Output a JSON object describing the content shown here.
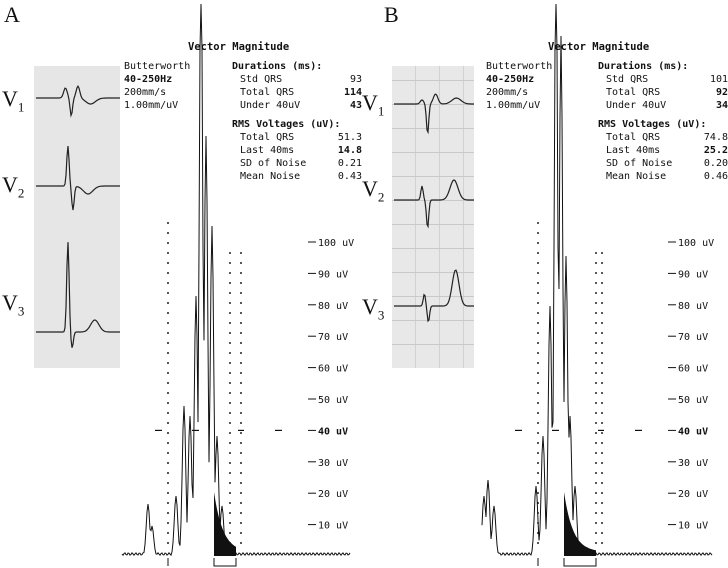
{
  "chart_data": [
    {
      "type": "line",
      "panel": "A",
      "title": "Vector Magnitude",
      "filter": {
        "name": "Butterworth",
        "band": "40-250Hz",
        "speed": "200mm/s",
        "gain": "1.00mm/uV"
      },
      "durations": {
        "header": "Durations (ms):",
        "std_qrs": "93",
        "total_qrs": "114",
        "under_40uv": "43"
      },
      "rms_voltages": {
        "header": "RMS Voltages (uV):",
        "total_qrs": "51.3",
        "last_40ms": "14.8",
        "sd_of_noise": "0.21",
        "mean_noise": "0.43"
      },
      "y_ticks": [
        "100 uV",
        "90 uV",
        "80 uV",
        "70 uV",
        "60 uV",
        "50 uV",
        "40 uV",
        "30 uV",
        "20 uV",
        "10 uV"
      ],
      "ylim": [
        0,
        100
      ],
      "leads": [
        "V1",
        "V2",
        "V3"
      ],
      "threshold_uv": 40
    },
    {
      "type": "line",
      "panel": "B",
      "title": "Vector Magnitude",
      "filter": {
        "name": "Butterworth",
        "band": "40-250Hz",
        "speed": "200mm/s",
        "gain": "1.00mm/uV"
      },
      "durations": {
        "header": "Durations (ms):",
        "std_qrs": "101",
        "total_qrs": "92",
        "under_40uv": "34"
      },
      "rms_voltages": {
        "header": "RMS Voltages (uV):",
        "total_qrs": "74.8",
        "last_40ms": "25.2",
        "sd_of_noise": "0.20",
        "mean_noise": "0.46"
      },
      "y_ticks": [
        "100 uV",
        "90 uV",
        "80 uV",
        "70 uV",
        "60 uV",
        "50 uV",
        "40 uV",
        "30 uV",
        "20 uV",
        "10 uV"
      ],
      "ylim": [
        0,
        100
      ],
      "leads": [
        "V1",
        "V2",
        "V3"
      ],
      "threshold_uv": 40
    }
  ],
  "labels": {
    "field_names": {
      "std_qrs": "Std QRS",
      "total_qrs": "Total QRS",
      "under_40uv": "Under 40uV",
      "last_40ms": "Last 40ms",
      "sd_of_noise": "SD of Noise",
      "mean_noise": "Mean Noise"
    }
  }
}
